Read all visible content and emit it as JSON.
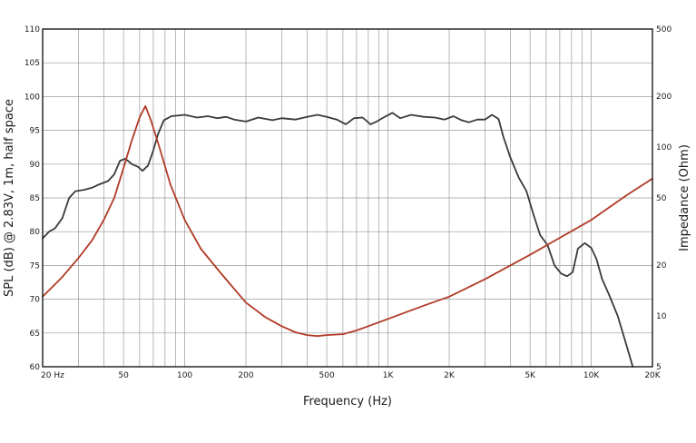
{
  "chart_data": {
    "type": "line",
    "title": "",
    "xlabel": "Frequency (Hz)",
    "ylabel": "SPL (dB) @ 2.83V, 1m, half space",
    "y2label": "Impedance (Ohm)",
    "x_scale": "log",
    "xlim": [
      20,
      20000
    ],
    "ylim": [
      60,
      110
    ],
    "y2_scale": "log",
    "y2lim": [
      5,
      500
    ],
    "grid": true,
    "x_ticks": [
      {
        "value": 20,
        "label": "20  Hz"
      },
      {
        "value": 50,
        "label": "50"
      },
      {
        "value": 100,
        "label": "100"
      },
      {
        "value": 200,
        "label": "200"
      },
      {
        "value": 500,
        "label": "500"
      },
      {
        "value": 1000,
        "label": "1K"
      },
      {
        "value": 2000,
        "label": "2K"
      },
      {
        "value": 5000,
        "label": "5K"
      },
      {
        "value": 10000,
        "label": "10K"
      },
      {
        "value": 20000,
        "label": "20K"
      }
    ],
    "y_ticks": [
      {
        "value": 60,
        "label": "60"
      },
      {
        "value": 65,
        "label": "65"
      },
      {
        "value": 70,
        "label": "70"
      },
      {
        "value": 75,
        "label": "75"
      },
      {
        "value": 80,
        "label": "80"
      },
      {
        "value": 85,
        "label": "85"
      },
      {
        "value": 90,
        "label": "90"
      },
      {
        "value": 95,
        "label": "95"
      },
      {
        "value": 100,
        "label": "100"
      },
      {
        "value": 105,
        "label": "105"
      },
      {
        "value": 110,
        "label": "110"
      }
    ],
    "y2_ticks": [
      {
        "value": 5,
        "label": "5"
      },
      {
        "value": 10,
        "label": "10"
      },
      {
        "value": 20,
        "label": "20"
      },
      {
        "value": 50,
        "label": "50"
      },
      {
        "value": 100,
        "label": "100"
      },
      {
        "value": 200,
        "label": "200"
      },
      {
        "value": 500,
        "label": "500"
      }
    ],
    "series": [
      {
        "axis": "left",
        "color": "#3a3a3a",
        "points": [
          [
            20,
            79.0
          ],
          [
            21.5,
            80.0
          ],
          [
            23,
            80.5
          ],
          [
            25,
            82.0
          ],
          [
            27,
            85.0
          ],
          [
            29,
            86.0
          ],
          [
            32,
            86.2
          ],
          [
            35,
            86.5
          ],
          [
            38,
            87.0
          ],
          [
            42,
            87.5
          ],
          [
            45,
            88.5
          ],
          [
            48,
            90.5
          ],
          [
            51,
            90.8
          ],
          [
            55,
            90.0
          ],
          [
            59,
            89.6
          ],
          [
            62,
            89.0
          ],
          [
            66,
            89.8
          ],
          [
            70,
            92.0
          ],
          [
            74,
            94.5
          ],
          [
            79,
            96.5
          ],
          [
            86,
            97.1
          ],
          [
            100,
            97.3
          ],
          [
            115,
            96.9
          ],
          [
            130,
            97.1
          ],
          [
            145,
            96.8
          ],
          [
            160,
            97.0
          ],
          [
            175,
            96.6
          ],
          [
            200,
            96.3
          ],
          [
            230,
            96.9
          ],
          [
            270,
            96.5
          ],
          [
            300,
            96.8
          ],
          [
            350,
            96.6
          ],
          [
            400,
            97.0
          ],
          [
            450,
            97.3
          ],
          [
            500,
            97.0
          ],
          [
            560,
            96.6
          ],
          [
            620,
            95.9
          ],
          [
            680,
            96.8
          ],
          [
            750,
            96.9
          ],
          [
            820,
            95.9
          ],
          [
            880,
            96.3
          ],
          [
            950,
            96.9
          ],
          [
            1050,
            97.6
          ],
          [
            1150,
            96.8
          ],
          [
            1300,
            97.3
          ],
          [
            1500,
            97.0
          ],
          [
            1700,
            96.9
          ],
          [
            1900,
            96.6
          ],
          [
            2100,
            97.1
          ],
          [
            2300,
            96.5
          ],
          [
            2500,
            96.2
          ],
          [
            2750,
            96.6
          ],
          [
            3000,
            96.6
          ],
          [
            3250,
            97.3
          ],
          [
            3500,
            96.7
          ],
          [
            3700,
            94.0
          ],
          [
            4000,
            91.0
          ],
          [
            4400,
            88.0
          ],
          [
            4800,
            86.0
          ],
          [
            5200,
            82.5
          ],
          [
            5600,
            79.5
          ],
          [
            6100,
            78.0
          ],
          [
            6600,
            75.0
          ],
          [
            7100,
            73.8
          ],
          [
            7600,
            73.4
          ],
          [
            8100,
            74.0
          ],
          [
            8600,
            77.5
          ],
          [
            9300,
            78.3
          ],
          [
            10000,
            77.6
          ],
          [
            10600,
            76.0
          ],
          [
            11300,
            73.0
          ],
          [
            12300,
            70.5
          ],
          [
            13500,
            67.5
          ],
          [
            14800,
            63.5
          ],
          [
            16000,
            60.0
          ]
        ]
      },
      {
        "axis": "right",
        "color": "#b03a26",
        "points": [
          [
            20,
            13.0
          ],
          [
            25,
            17.0
          ],
          [
            30,
            22.0
          ],
          [
            35,
            28.0
          ],
          [
            40,
            37.0
          ],
          [
            45,
            50.0
          ],
          [
            50,
            75.0
          ],
          [
            55,
            110.0
          ],
          [
            60,
            150.0
          ],
          [
            64,
            175.0
          ],
          [
            68,
            145.0
          ],
          [
            75,
            100.0
          ],
          [
            85,
            60.0
          ],
          [
            100,
            37.0
          ],
          [
            120,
            25.0
          ],
          [
            150,
            18.0
          ],
          [
            200,
            12.0
          ],
          [
            250,
            9.8
          ],
          [
            300,
            8.7
          ],
          [
            350,
            8.0
          ],
          [
            400,
            7.7
          ],
          [
            450,
            7.6
          ],
          [
            500,
            7.7
          ],
          [
            600,
            7.8
          ],
          [
            700,
            8.2
          ],
          [
            800,
            8.7
          ],
          [
            1000,
            9.6
          ],
          [
            1500,
            11.5
          ],
          [
            2000,
            13.0
          ],
          [
            3000,
            16.5
          ],
          [
            5000,
            23.0
          ],
          [
            7000,
            29.0
          ],
          [
            10000,
            37.0
          ],
          [
            15000,
            52.0
          ],
          [
            20000,
            65.0
          ]
        ]
      }
    ]
  }
}
